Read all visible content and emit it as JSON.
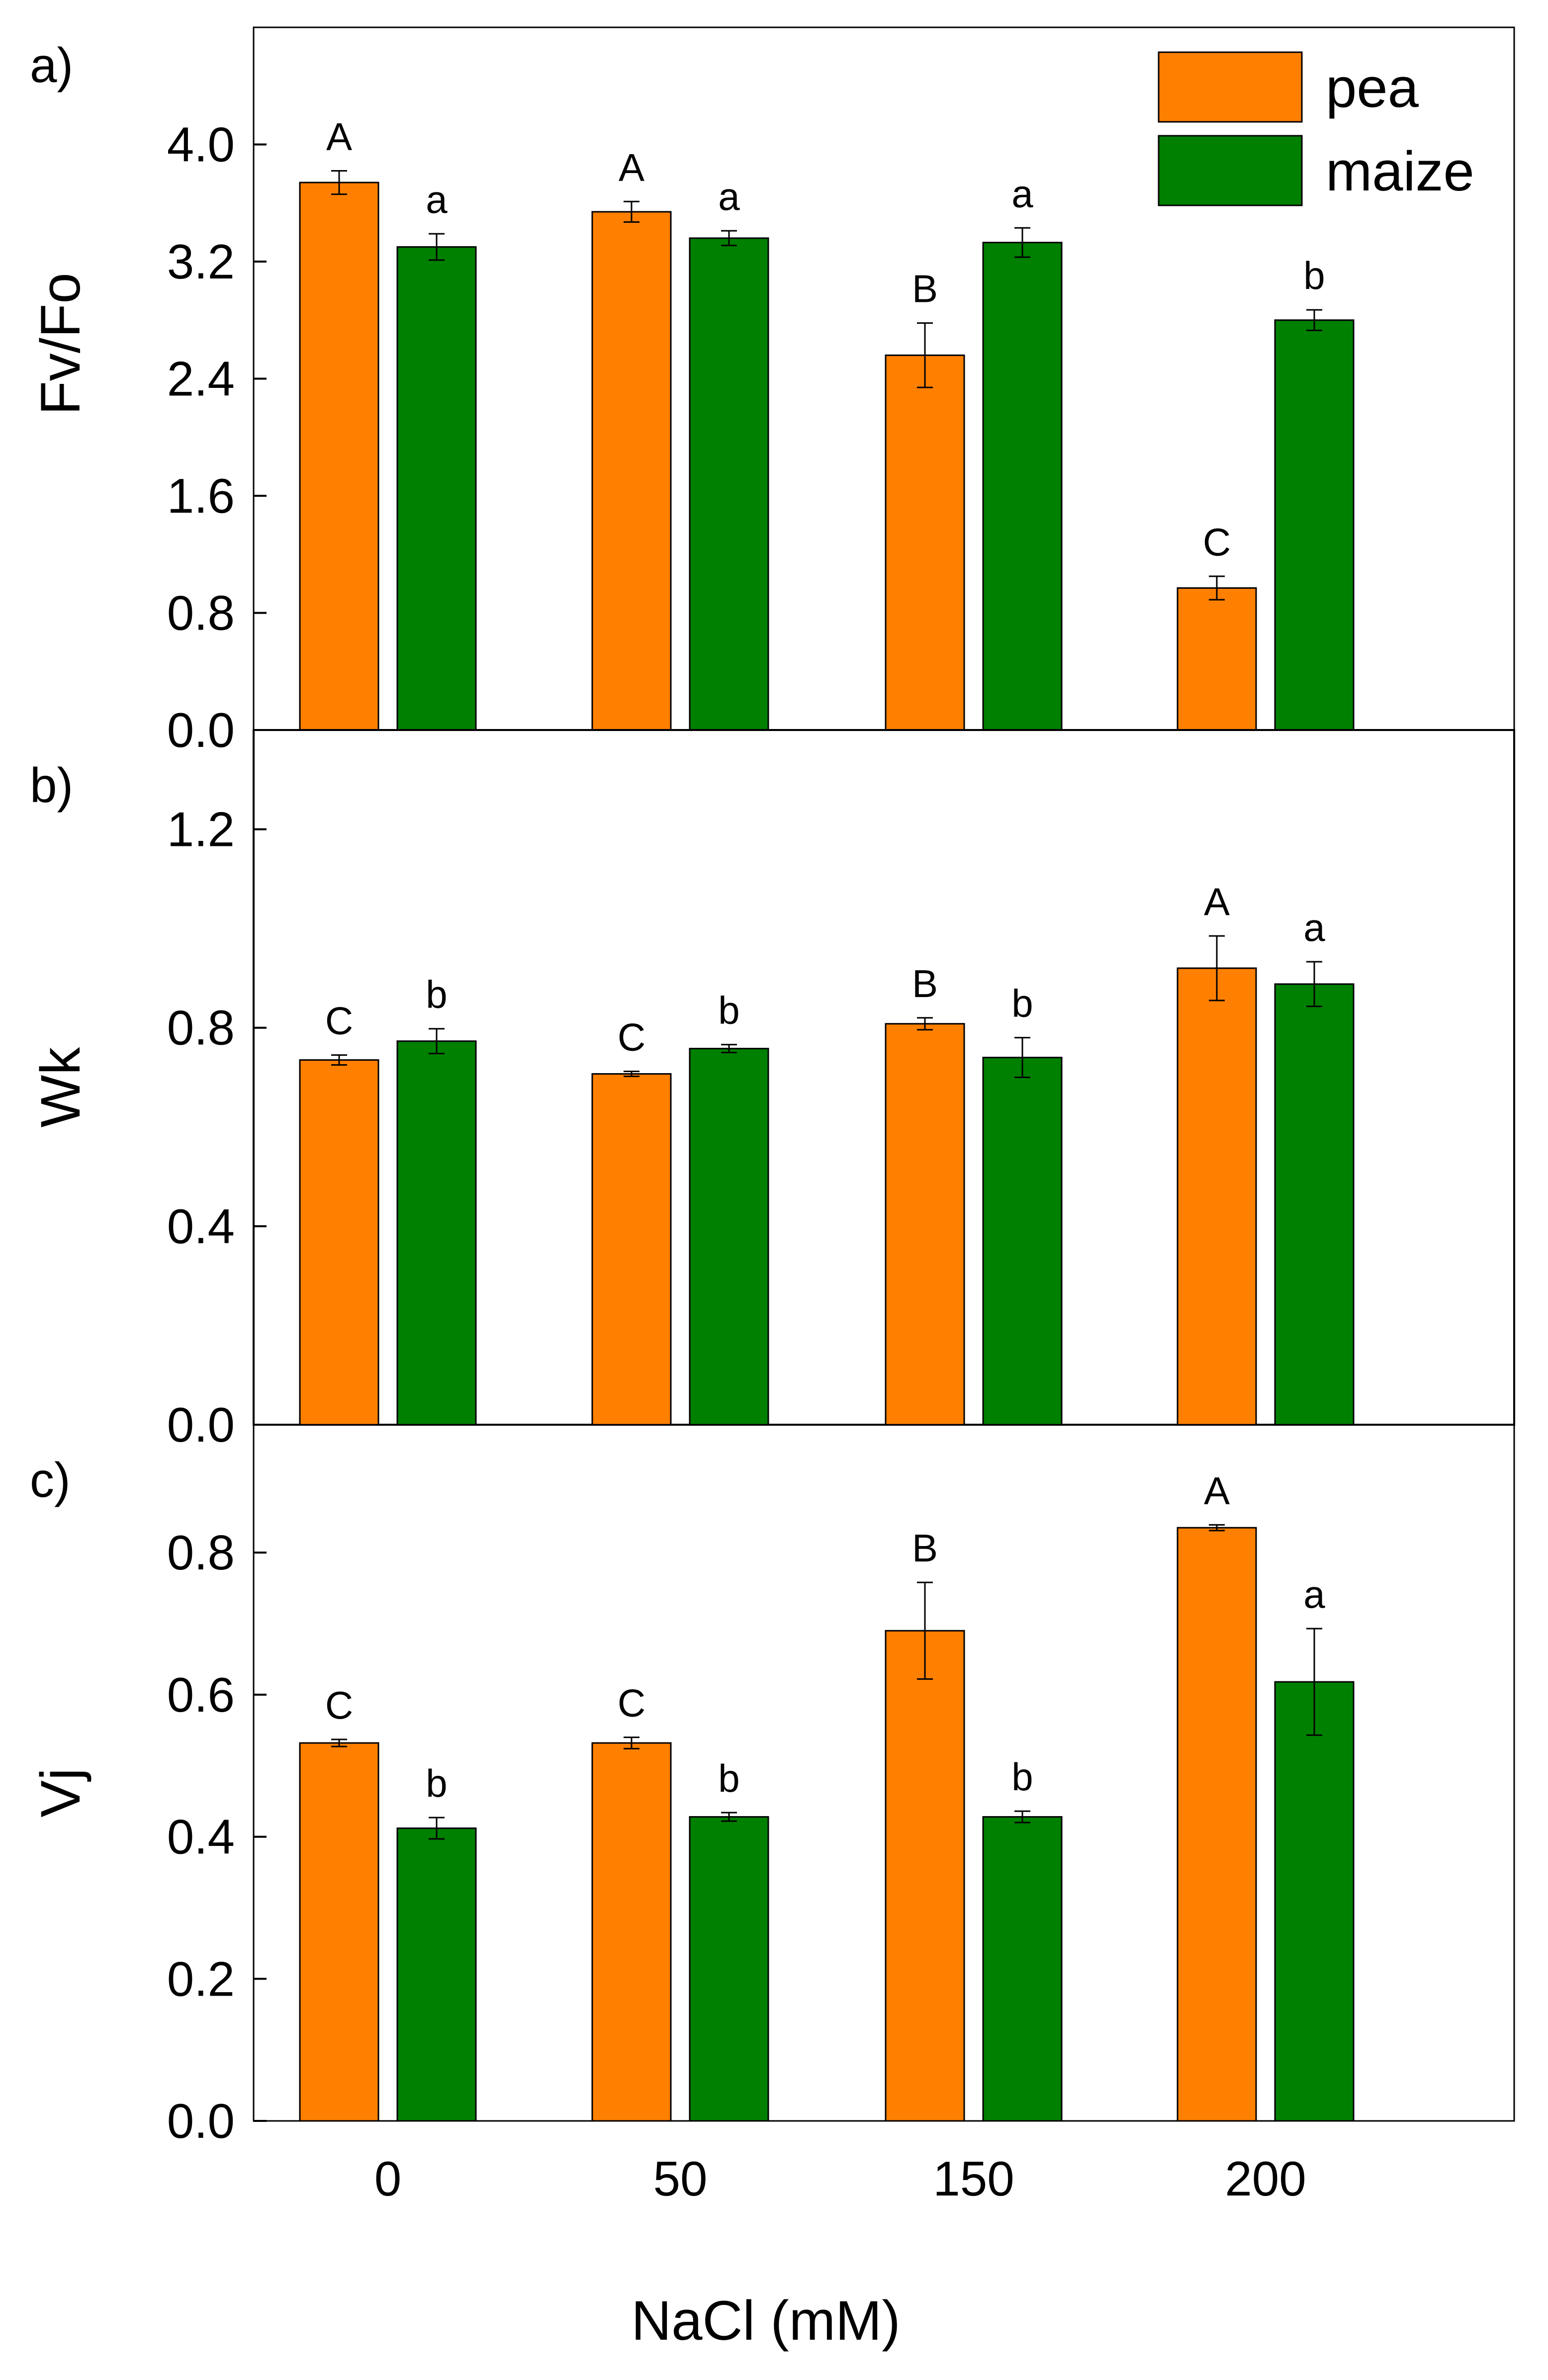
{
  "colors": {
    "pea": "#ff8000",
    "maize": "#008000",
    "axis": "#000000",
    "background": "#ffffff"
  },
  "chart_data": {
    "type": "bar",
    "xlabel": "NaCl (mM)",
    "categories": [
      "0",
      "50",
      "150",
      "200"
    ],
    "legend": {
      "position": "top-right",
      "entries": [
        "pea",
        "maize"
      ]
    },
    "panels": [
      {
        "label": "a)",
        "ylabel": "Fv/Fo",
        "ylim": [
          0,
          4.8
        ],
        "yticks": [
          "0.0",
          "0.8",
          "1.6",
          "2.4",
          "3.2",
          "4.0"
        ],
        "series": [
          {
            "name": "pea",
            "values": [
              3.74,
              3.54,
              2.56,
              0.97
            ],
            "errors": [
              0.08,
              0.07,
              0.22,
              0.08
            ],
            "letters": [
              "A",
              "A",
              "B",
              "C"
            ]
          },
          {
            "name": "maize",
            "values": [
              3.3,
              3.36,
              3.33,
              2.8
            ],
            "errors": [
              0.09,
              0.05,
              0.1,
              0.07
            ],
            "letters": [
              "a",
              "a",
              "a",
              "b"
            ]
          }
        ]
      },
      {
        "label": "b)",
        "ylabel": "Wk",
        "ylim": [
          0,
          1.4
        ],
        "yticks": [
          "0.0",
          "0.4",
          "0.8",
          "1.2"
        ],
        "series": [
          {
            "name": "pea",
            "values": [
              0.735,
              0.707,
              0.808,
              0.92
            ],
            "errors": [
              0.01,
              0.005,
              0.012,
              0.065
            ],
            "letters": [
              "C",
              "C",
              "B",
              "A"
            ]
          },
          {
            "name": "maize",
            "values": [
              0.773,
              0.758,
              0.74,
              0.888
            ],
            "errors": [
              0.025,
              0.008,
              0.04,
              0.045
            ],
            "letters": [
              "b",
              "b",
              "b",
              "a"
            ]
          }
        ]
      },
      {
        "label": "c)",
        "ylabel": "Vj",
        "ylim": [
          0,
          0.98
        ],
        "yticks": [
          "0.0",
          "0.2",
          "0.4",
          "0.6",
          "0.8"
        ],
        "series": [
          {
            "name": "pea",
            "values": [
              0.532,
              0.532,
              0.69,
              0.835
            ],
            "errors": [
              0.005,
              0.008,
              0.068,
              0.004
            ],
            "letters": [
              "C",
              "C",
              "B",
              "A"
            ]
          },
          {
            "name": "maize",
            "values": [
              0.412,
              0.428,
              0.428,
              0.618
            ],
            "errors": [
              0.015,
              0.006,
              0.008,
              0.075
            ],
            "letters": [
              "b",
              "b",
              "b",
              "a"
            ]
          }
        ]
      }
    ]
  }
}
